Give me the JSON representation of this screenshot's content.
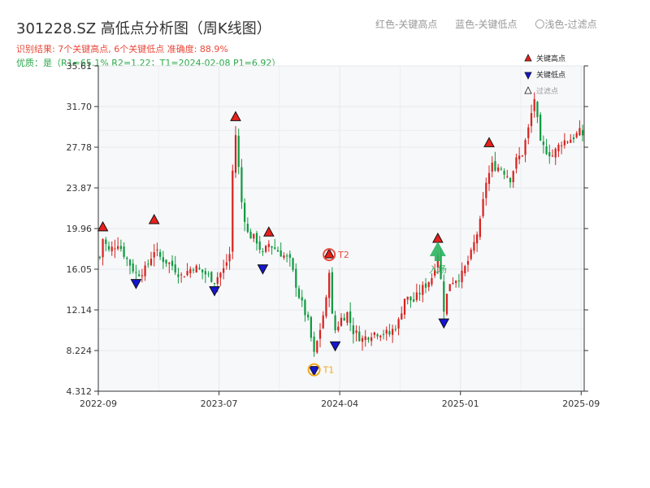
{
  "header": {
    "title": "301228.SZ 高低点分析图（周K线图）",
    "subtitle_result": "识别结果: 7个关键高点, 6个关键低点  准确度: 88.9%",
    "subtitle_quality": "优质：是（R1=65.1%  R2=1.22；T1=2024-02-08 P1=6.92）",
    "legend_items": [
      "红色-关键高点",
      "蓝色-关键低点",
      "〇浅色-过滤点"
    ]
  },
  "colors": {
    "up": "#d7231f",
    "down": "#109a40",
    "high_marker": "#e8201b",
    "low_marker": "#1515d0",
    "plot_bg": "#f7f8fa",
    "t1": "#f2a81d",
    "t2": "#ee4c44",
    "entry": "#2bb35f"
  },
  "chart_data": {
    "type": "candlestick",
    "y_ticks": [
      "4.312",
      "8.224",
      "12.14",
      "16.05",
      "19.96",
      "23.87",
      "27.78",
      "31.70",
      "35.61"
    ],
    "x_ticks": [
      "2022-09",
      "2023-07",
      "2024-04",
      "2025-01",
      "2025-09"
    ],
    "ylim": [
      4.312,
      35.61
    ],
    "x_index_range": [
      0,
      161
    ],
    "legend": [
      "关键高点",
      "关键低点",
      "过滤点"
    ],
    "key_highs": [
      {
        "idx": 1,
        "value": 19.5
      },
      {
        "idx": 18,
        "value": 20.2
      },
      {
        "idx": 45,
        "value": 30.1
      },
      {
        "idx": 56,
        "value": 19.0
      },
      {
        "idx": 76,
        "value": 16.9
      },
      {
        "idx": 112,
        "value": 18.4
      },
      {
        "idx": 129,
        "value": 27.6
      }
    ],
    "key_lows": [
      {
        "idx": 12,
        "value": 15.3
      },
      {
        "idx": 38,
        "value": 14.6
      },
      {
        "idx": 54,
        "value": 16.7
      },
      {
        "idx": 71,
        "value": 6.92
      },
      {
        "idx": 78,
        "value": 9.3
      },
      {
        "idx": 114,
        "value": 11.5
      }
    ],
    "annotations": [
      {
        "label": "T1",
        "idx": 71,
        "value": 6.92
      },
      {
        "label": "T2",
        "idx": 76,
        "value": 16.9
      },
      {
        "label": "入场",
        "idx": 112,
        "value": 17.3
      }
    ]
  }
}
